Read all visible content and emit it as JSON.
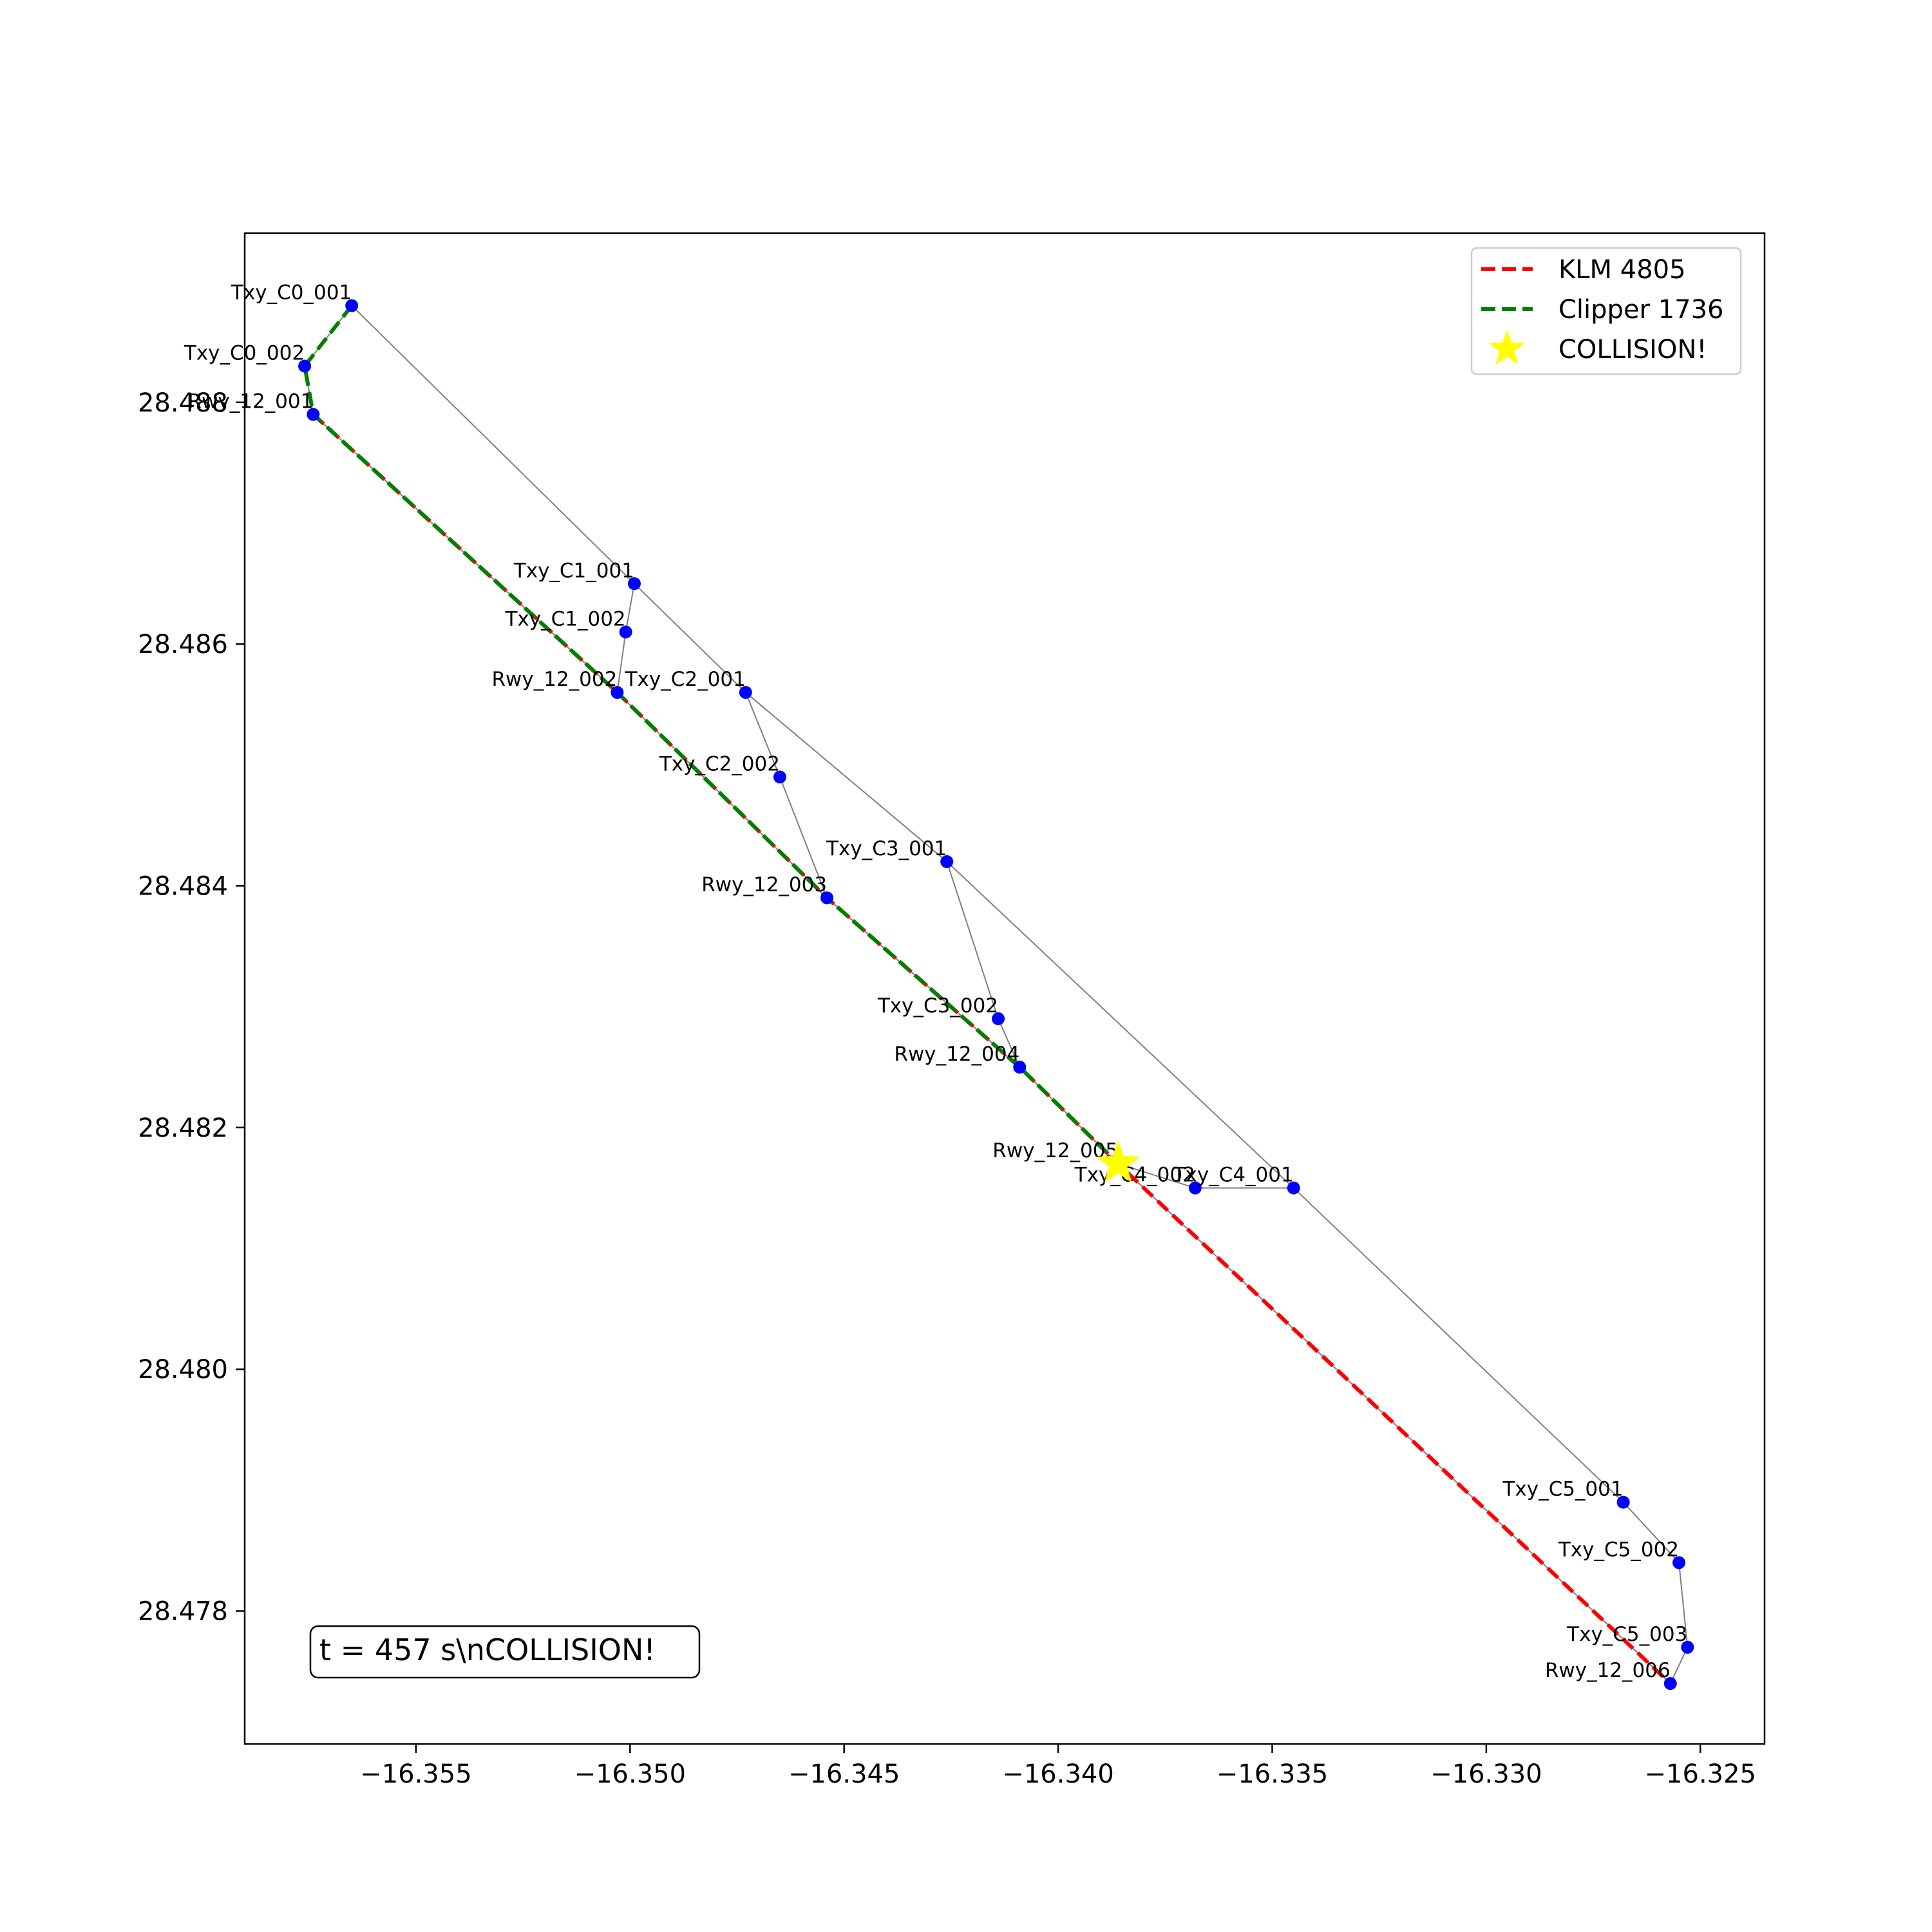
{
  "chart_data": {
    "type": "line",
    "title": "",
    "xlabel": "",
    "ylabel": "",
    "xlim": [
      -16.359,
      -16.3235
    ],
    "ylim": [
      28.4769,
      28.4894
    ],
    "grid": false,
    "legend_placement": "top-right",
    "x_ticks": [
      {
        "value": -16.355,
        "label": "−16.355"
      },
      {
        "value": -16.35,
        "label": "−16.350"
      },
      {
        "value": -16.345,
        "label": "−16.345"
      },
      {
        "value": -16.34,
        "label": "−16.340"
      },
      {
        "value": -16.335,
        "label": "−16.335"
      },
      {
        "value": -16.33,
        "label": "−16.330"
      },
      {
        "value": -16.325,
        "label": "−16.325"
      }
    ],
    "y_ticks": [
      {
        "value": 28.478,
        "label": "28.478"
      },
      {
        "value": 28.48,
        "label": "28.480"
      },
      {
        "value": 28.482,
        "label": "28.482"
      },
      {
        "value": 28.484,
        "label": "28.484"
      },
      {
        "value": 28.486,
        "label": "28.486"
      },
      {
        "value": 28.488,
        "label": "28.488"
      }
    ],
    "nodes": [
      {
        "name": "Txy_C0_001",
        "x": -16.3565,
        "y": 28.4888
      },
      {
        "name": "Txy_C0_002",
        "x": -16.3576,
        "y": 28.4883
      },
      {
        "name": "Rwy_12_001",
        "x": -16.3574,
        "y": 28.4879
      },
      {
        "name": "Txy_C1_001",
        "x": -16.3499,
        "y": 28.4865
      },
      {
        "name": "Txy_C1_002",
        "x": -16.3501,
        "y": 28.4861
      },
      {
        "name": "Rwy_12_002",
        "x": -16.3503,
        "y": 28.4856
      },
      {
        "name": "Txy_C2_001",
        "x": -16.3473,
        "y": 28.4856
      },
      {
        "name": "Txy_C2_002",
        "x": -16.3465,
        "y": 28.4849
      },
      {
        "name": "Rwy_12_003",
        "x": -16.3454,
        "y": 28.4839
      },
      {
        "name": "Txy_C3_001",
        "x": -16.3426,
        "y": 28.4842
      },
      {
        "name": "Txy_C3_002",
        "x": -16.3414,
        "y": 28.4829
      },
      {
        "name": "Rwy_12_004",
        "x": -16.3409,
        "y": 28.4825
      },
      {
        "name": "Rwy_12_005",
        "x": -16.3386,
        "y": 28.4817
      },
      {
        "name": "Txy_C4_002",
        "x": -16.3368,
        "y": 28.4815
      },
      {
        "name": "Txy_C4_001",
        "x": -16.3345,
        "y": 28.4815
      },
      {
        "name": "Txy_C5_001",
        "x": -16.3268,
        "y": 28.4789
      },
      {
        "name": "Txy_C5_002",
        "x": -16.3255,
        "y": 28.4784
      },
      {
        "name": "Txy_C5_003",
        "x": -16.3253,
        "y": 28.4777
      },
      {
        "name": "Rwy_12_006",
        "x": -16.3257,
        "y": 28.4774
      }
    ],
    "edges": [
      [
        "Txy_C0_001",
        "Txy_C0_002"
      ],
      [
        "Txy_C0_002",
        "Rwy_12_001"
      ],
      [
        "Rwy_12_001",
        "Rwy_12_002"
      ],
      [
        "Rwy_12_002",
        "Rwy_12_003"
      ],
      [
        "Rwy_12_003",
        "Rwy_12_004"
      ],
      [
        "Rwy_12_004",
        "Rwy_12_005"
      ],
      [
        "Rwy_12_005",
        "Rwy_12_006"
      ],
      [
        "Txy_C0_001",
        "Txy_C1_001"
      ],
      [
        "Txy_C1_001",
        "Txy_C2_001"
      ],
      [
        "Txy_C2_001",
        "Txy_C3_001"
      ],
      [
        "Txy_C3_001",
        "Txy_C4_001"
      ],
      [
        "Txy_C4_001",
        "Txy_C5_001"
      ],
      [
        "Txy_C5_001",
        "Txy_C5_002"
      ],
      [
        "Txy_C5_002",
        "Txy_C5_003"
      ],
      [
        "Txy_C5_003",
        "Rwy_12_006"
      ],
      [
        "Txy_C1_001",
        "Txy_C1_002"
      ],
      [
        "Txy_C1_002",
        "Rwy_12_002"
      ],
      [
        "Txy_C2_001",
        "Txy_C2_002"
      ],
      [
        "Txy_C2_002",
        "Rwy_12_003"
      ],
      [
        "Txy_C3_001",
        "Txy_C3_002"
      ],
      [
        "Txy_C3_002",
        "Rwy_12_004"
      ],
      [
        "Txy_C4_001",
        "Txy_C4_002"
      ],
      [
        "Txy_C4_002",
        "Rwy_12_005"
      ]
    ],
    "series": [
      {
        "name": "KLM 4805",
        "color": "#ff0000",
        "style": "dashed",
        "x": [
          -16.3574,
          -16.3503,
          -16.3454,
          -16.3409,
          -16.3386,
          -16.3257
        ],
        "y": [
          28.4879,
          28.4856,
          28.4839,
          28.4825,
          28.4817,
          28.4774
        ]
      },
      {
        "name": "Clipper 1736",
        "color": "#008000",
        "style": "dashed",
        "x": [
          -16.3565,
          -16.3576,
          -16.3574,
          -16.3503,
          -16.3454,
          -16.3409,
          -16.3386
        ],
        "y": [
          28.4888,
          28.4883,
          28.4879,
          28.4856,
          28.4839,
          28.4825,
          28.4817
        ]
      }
    ],
    "collision": {
      "label": "COLLISION!",
      "x": -16.3386,
      "y": 28.4817,
      "color": "#ffff00"
    },
    "annotation": "t = 457 s\\nCOLLISION!",
    "node_color": "#0000ff",
    "edge_color": "#808080"
  }
}
